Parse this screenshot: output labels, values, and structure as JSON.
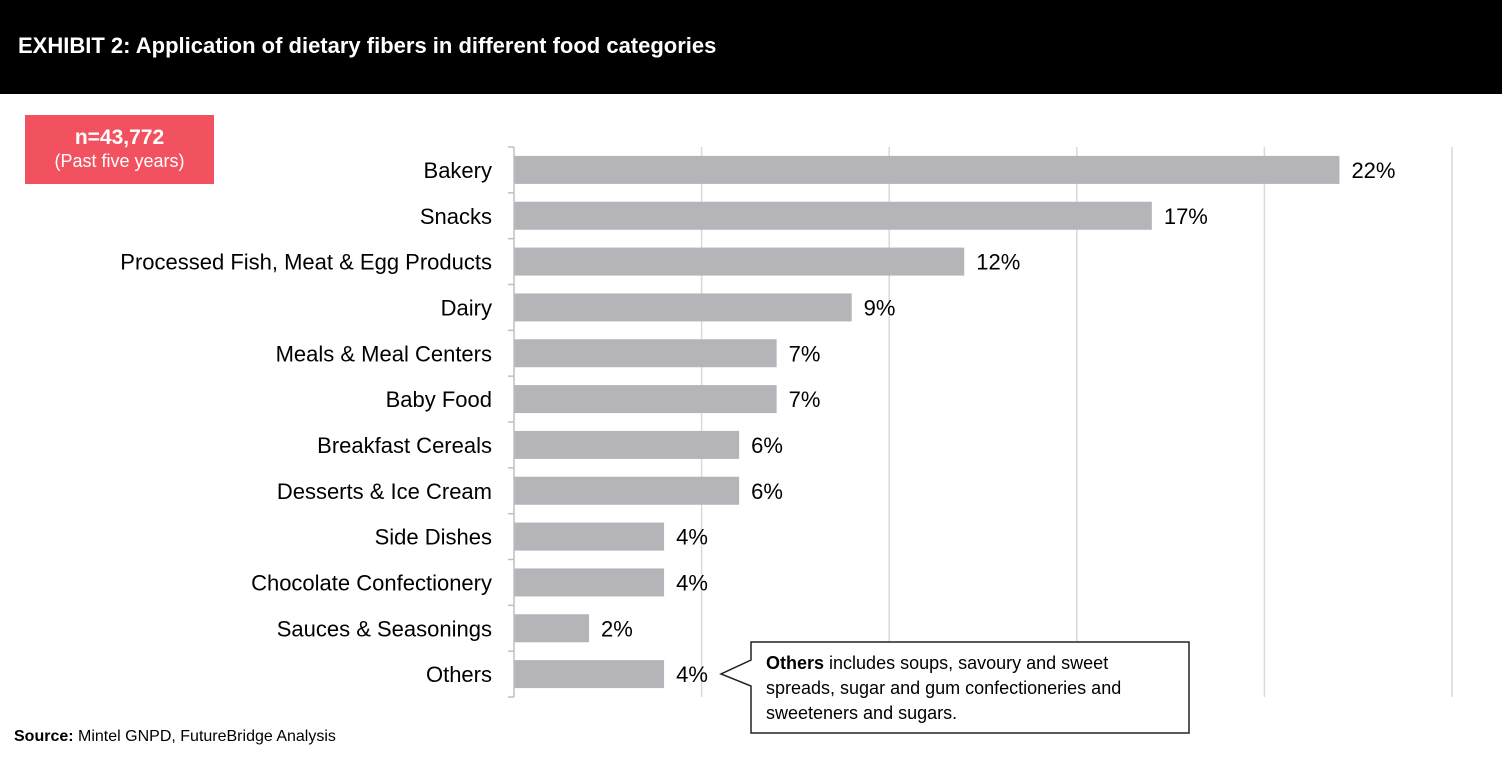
{
  "header": {
    "title": "EXHIBIT 2: Application of dietary fibers in different food categories"
  },
  "sample": {
    "n": "n=43,772",
    "period": "(Past five years)"
  },
  "chart_data": {
    "type": "bar",
    "orientation": "horizontal",
    "categories": [
      "Bakery",
      "Snacks",
      "Processed Fish, Meat & Egg Products",
      "Dairy",
      "Meals &  Meal Centers",
      "Baby Food",
      "Breakfast Cereals",
      "Desserts & Ice Cream",
      "Side Dishes",
      "Chocolate Confectionery",
      "Sauces & Seasonings",
      "Others"
    ],
    "values": [
      22,
      17,
      12,
      9,
      7,
      7,
      6,
      6,
      4,
      4,
      2,
      4
    ],
    "value_labels": [
      "22%",
      "17%",
      "12%",
      "9%",
      "7%",
      "7%",
      "6%",
      "6%",
      "4%",
      "4%",
      "2%",
      "4%"
    ],
    "xlim": [
      0,
      25
    ],
    "grid": true,
    "bar_color": "#b5b4b9"
  },
  "callout": {
    "bold": "Others",
    "text": " includes soups, savoury and sweet spreads, sugar and gum confectioneries and sweeteners and sugars."
  },
  "source": {
    "label": "Source:",
    "text": " Mintel GNPD, FutureBridge Analysis"
  }
}
